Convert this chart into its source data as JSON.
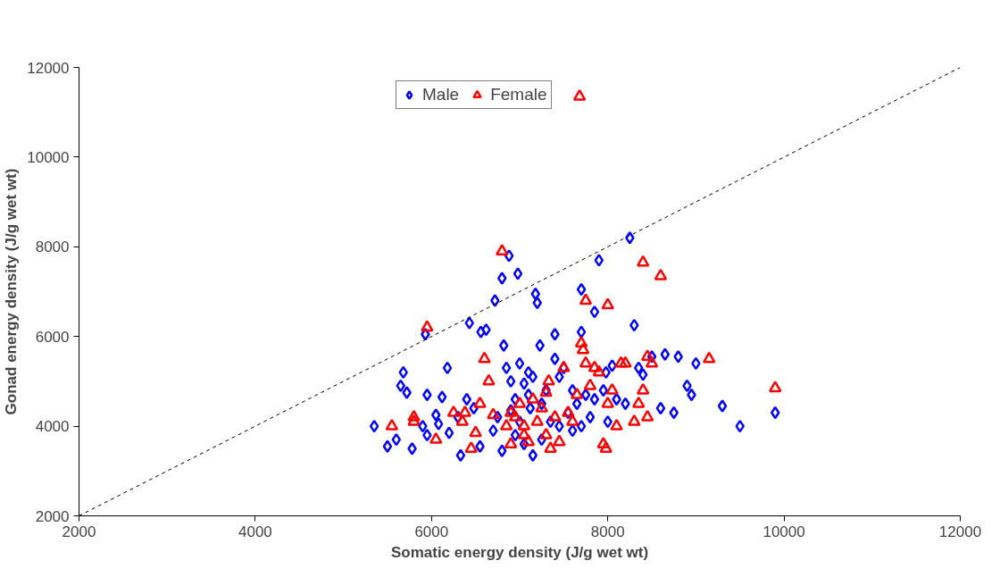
{
  "chart_data": {
    "type": "scatter",
    "xlabel": "Somatic energy density (J/g wet wt)",
    "ylabel": "Gonad energy density (J/g wet wt)",
    "xlim": [
      2000,
      12000
    ],
    "ylim": [
      2000,
      12000
    ],
    "xticks": [
      2000,
      4000,
      6000,
      8000,
      10000,
      12000
    ],
    "yticks": [
      2000,
      4000,
      6000,
      8000,
      10000,
      12000
    ],
    "grid": false,
    "legend": "top",
    "series": [
      {
        "name": "Male",
        "color": "#0000ff",
        "marker": "diamond",
        "x": [
          5350,
          5500,
          5600,
          5650,
          5680,
          5720,
          5780,
          5900,
          5930,
          5950,
          5950,
          6050,
          6080,
          6120,
          6180,
          6200,
          6300,
          6330,
          6400,
          6430,
          6480,
          6550,
          6560,
          6620,
          6700,
          6720,
          6800,
          6800,
          6820,
          6850,
          6880,
          6900,
          6950,
          6980,
          7000,
          7050,
          7100,
          7120,
          7150,
          7150,
          7180,
          7200,
          7230,
          7250,
          7300,
          7400,
          7400,
          7450,
          7500,
          7550,
          7600,
          7650,
          7700,
          7700,
          7700,
          7750,
          7800,
          7850,
          7850,
          7900,
          7950,
          7980,
          8000,
          8050,
          8200,
          8250,
          8300,
          8350,
          8400,
          8500,
          8600,
          8650,
          8750,
          8800,
          8900,
          8950,
          9000,
          9300,
          9500,
          9900,
          6950,
          7050,
          7250,
          7350,
          7450,
          6750,
          7000,
          7600,
          8100,
          7100,
          6900
        ],
        "values": [
          4000,
          3550,
          3700,
          4900,
          5200,
          4750,
          3500,
          4000,
          6050,
          4700,
          3800,
          4250,
          4050,
          4650,
          5300,
          3850,
          4200,
          3350,
          4600,
          6300,
          4400,
          3550,
          6100,
          6150,
          3900,
          6800,
          7300,
          3450,
          5800,
          5300,
          7800,
          5000,
          4600,
          7400,
          5400,
          4950,
          5200,
          4400,
          5100,
          3350,
          6950,
          6750,
          5800,
          4500,
          4800,
          5500,
          6050,
          5100,
          5300,
          4300,
          4800,
          4500,
          7050,
          6100,
          4000,
          4700,
          4200,
          4600,
          6550,
          7700,
          4800,
          5200,
          4100,
          5350,
          4500,
          8200,
          6250,
          5300,
          5150,
          5550,
          4400,
          5600,
          4300,
          5550,
          4900,
          4700,
          5400,
          4450,
          4000,
          4300,
          3800,
          3600,
          3700,
          4100,
          4000,
          4200,
          4100,
          3900,
          4600,
          4700,
          4350
        ]
      },
      {
        "name": "Female",
        "color": "#ff0000",
        "marker": "triangle",
        "x": [
          5550,
          5800,
          5800,
          5950,
          6050,
          6250,
          6350,
          6380,
          6450,
          6500,
          6550,
          6600,
          6650,
          6700,
          6800,
          6850,
          6900,
          6950,
          7000,
          7050,
          7100,
          7150,
          7200,
          7300,
          7300,
          7330,
          7350,
          7450,
          7500,
          7550,
          7650,
          7680,
          7700,
          7720,
          7750,
          7750,
          7800,
          7850,
          7900,
          7950,
          7980,
          8000,
          8000,
          8050,
          8100,
          8150,
          8200,
          8300,
          8350,
          8400,
          8400,
          8450,
          8450,
          8500,
          8600,
          9150,
          9900,
          6900,
          7250,
          7600,
          7400,
          7050
        ],
        "values": [
          4000,
          4200,
          4100,
          6200,
          3700,
          4300,
          4100,
          4300,
          3500,
          3850,
          4500,
          5500,
          5000,
          4250,
          7900,
          4000,
          3600,
          4200,
          4500,
          3800,
          3650,
          4600,
          4100,
          4750,
          3800,
          5000,
          3500,
          3650,
          5300,
          4300,
          4700,
          11350,
          5850,
          5700,
          6800,
          5400,
          4900,
          5300,
          5200,
          3600,
          3500,
          4500,
          6700,
          4800,
          4000,
          5400,
          5400,
          4100,
          4500,
          4800,
          7650,
          4200,
          5550,
          5400,
          7350,
          5500,
          4850,
          4300,
          4400,
          4100,
          4200,
          4000
        ]
      },
      {
        "type": "line",
        "color": "#000000",
        "line_style": "dashed",
        "x": [
          2000,
          12000
        ],
        "values": [
          2000,
          12000
        ]
      }
    ]
  }
}
